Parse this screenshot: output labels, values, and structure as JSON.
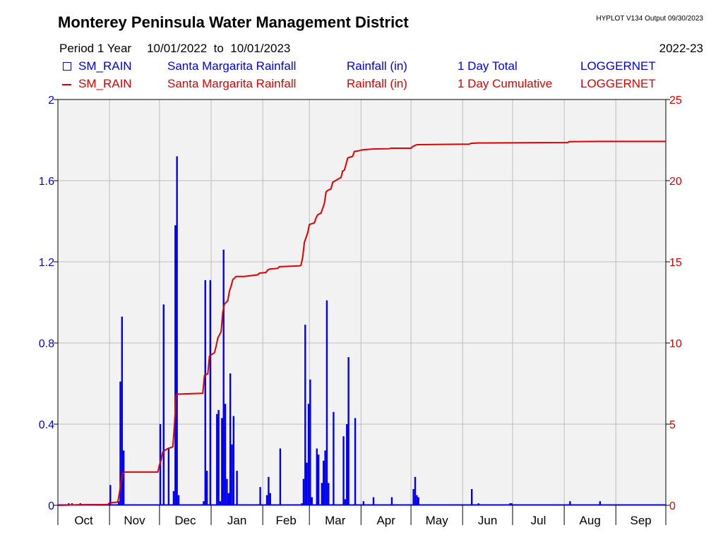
{
  "header": {
    "title": "Monterey Peninsula Water Management District",
    "version": "HYPLOT V134  Output 09/30/2023",
    "period_label": "Period 1 Year",
    "start_date": "10/01/2022",
    "to": "to",
    "end_date": "10/01/2023",
    "water_year": "2022-23"
  },
  "legend": [
    {
      "symbol": "box",
      "site": "SM_RAIN",
      "name": "Santa Margarita Rainfall",
      "variable": "Rainfall (in)",
      "stat": "1 Day Total",
      "source": "LOGGERNET",
      "color": "#0000ee"
    },
    {
      "symbol": "line",
      "site": "SM_RAIN",
      "name": "Santa Margarita Rainfall",
      "variable": "Rainfall (in)",
      "stat": "1 Day Cumulative",
      "source": "LOGGERNET",
      "color": "#e00000"
    }
  ],
  "chart_data": {
    "type": "bar",
    "colors": {
      "daily": "#0000ee",
      "cumulative": "#e00000",
      "grid": "#bdbdbd",
      "plot_bg": "#f2f2f2"
    },
    "grid": true,
    "y_left": {
      "range": [
        0,
        2
      ],
      "ticks": [
        0,
        0.4,
        0.8,
        1.2,
        1.6,
        2
      ],
      "tick_labels": [
        "0",
        "0.4",
        "0.8",
        "1.2",
        "1.6",
        "2"
      ]
    },
    "y_right": {
      "range": [
        0,
        25
      ],
      "ticks": [
        0,
        5,
        10,
        15,
        20,
        25
      ],
      "tick_labels": [
        "0",
        "5",
        "10",
        "15",
        "20",
        "25"
      ]
    },
    "x": {
      "range_days": [
        0,
        365
      ],
      "month_starts": [
        0,
        31,
        61,
        92,
        123,
        151,
        182,
        212,
        243,
        273,
        304,
        335,
        365
      ],
      "month_labels": [
        "Oct",
        "Nov",
        "Dec",
        "Jan",
        "Feb",
        "Mar",
        "Apr",
        "May",
        "Jun",
        "Jul",
        "Aug",
        "Sep"
      ]
    },
    "series": [
      {
        "name": "1 Day Total",
        "axis": "left",
        "points": [
          [
            6,
            0.01
          ],
          [
            8,
            0.01
          ],
          [
            13,
            0.01
          ],
          [
            31,
            0.1
          ],
          [
            36,
            0.02
          ],
          [
            37,
            0.61
          ],
          [
            38,
            0.93
          ],
          [
            39,
            0.27
          ],
          [
            61,
            0.4
          ],
          [
            63,
            0.99
          ],
          [
            66,
            0.28
          ],
          [
            69,
            0.07
          ],
          [
            70,
            1.38
          ],
          [
            71,
            1.72
          ],
          [
            72,
            0.05
          ],
          [
            87,
            0.02
          ],
          [
            88,
            1.11
          ],
          [
            89,
            0.17
          ],
          [
            91,
            1.11
          ],
          [
            95,
            0.45
          ],
          [
            96,
            0.47
          ],
          [
            97,
            0.02
          ],
          [
            98,
            0.43
          ],
          [
            99,
            1.26
          ],
          [
            100,
            0.5
          ],
          [
            101,
            0.13
          ],
          [
            102,
            0.06
          ],
          [
            103,
            0.65
          ],
          [
            104,
            0.3
          ],
          [
            105,
            0.44
          ],
          [
            107,
            0.17
          ],
          [
            121,
            0.09
          ],
          [
            125,
            0.05
          ],
          [
            126,
            0.14
          ],
          [
            127,
            0.06
          ],
          [
            133,
            0.28
          ],
          [
            146,
            0.01
          ],
          [
            147,
            0.13
          ],
          [
            148,
            0.89
          ],
          [
            149,
            0.21
          ],
          [
            150,
            0.5
          ],
          [
            151,
            0.62
          ],
          [
            152,
            0.04
          ],
          [
            155,
            0.28
          ],
          [
            156,
            0.25
          ],
          [
            158,
            0.11
          ],
          [
            159,
            0.22
          ],
          [
            160,
            0.27
          ],
          [
            161,
            1.01
          ],
          [
            162,
            0.11
          ],
          [
            165,
            0.46
          ],
          [
            171,
            0.34
          ],
          [
            172,
            0.03
          ],
          [
            173,
            0.4
          ],
          [
            174,
            0.73
          ],
          [
            178,
            0.43
          ],
          [
            183,
            0.02
          ],
          [
            189,
            0.04
          ],
          [
            200,
            0.04
          ],
          [
            213,
            0.08
          ],
          [
            214,
            0.14
          ],
          [
            215,
            0.05
          ],
          [
            216,
            0.04
          ],
          [
            248,
            0.08
          ],
          [
            252,
            0.01
          ],
          [
            271,
            0.01
          ],
          [
            272,
            0.01
          ],
          [
            307,
            0.02
          ],
          [
            325,
            0.02
          ]
        ]
      },
      {
        "name": "1 Day Cumulative",
        "axis": "right",
        "points": [
          [
            0,
            0
          ],
          [
            5,
            0.01
          ],
          [
            13,
            0.04
          ],
          [
            30,
            0.05
          ],
          [
            31,
            0.15
          ],
          [
            36,
            0.2
          ],
          [
            37,
            0.8
          ],
          [
            38,
            1.5
          ],
          [
            39,
            2.0
          ],
          [
            40,
            2.05
          ],
          [
            60,
            2.05
          ],
          [
            61,
            2.5
          ],
          [
            62,
            2.8
          ],
          [
            63,
            3.3
          ],
          [
            66,
            3.5
          ],
          [
            69,
            3.6
          ],
          [
            70,
            5.0
          ],
          [
            71,
            6.8
          ],
          [
            72,
            6.85
          ],
          [
            87,
            6.9
          ],
          [
            88,
            8.0
          ],
          [
            90,
            8.1
          ],
          [
            91,
            9.2
          ],
          [
            94,
            9.4
          ],
          [
            95,
            9.8
          ],
          [
            96,
            10.3
          ],
          [
            98,
            10.7
          ],
          [
            99,
            11.9
          ],
          [
            100,
            12.4
          ],
          [
            102,
            12.6
          ],
          [
            103,
            13.2
          ],
          [
            104,
            13.5
          ],
          [
            105,
            13.9
          ],
          [
            107,
            14.1
          ],
          [
            112,
            14.1
          ],
          [
            120,
            14.2
          ],
          [
            121,
            14.3
          ],
          [
            125,
            14.35
          ],
          [
            126,
            14.5
          ],
          [
            127,
            14.55
          ],
          [
            132,
            14.6
          ],
          [
            133,
            14.7
          ],
          [
            145,
            14.75
          ],
          [
            146,
            14.8
          ],
          [
            147,
            15.3
          ],
          [
            148,
            16.2
          ],
          [
            150,
            16.8
          ],
          [
            151,
            17.3
          ],
          [
            154,
            17.4
          ],
          [
            155,
            17.7
          ],
          [
            156,
            17.9
          ],
          [
            158,
            18.0
          ],
          [
            159,
            18.3
          ],
          [
            160,
            18.6
          ],
          [
            161,
            19.3
          ],
          [
            162,
            19.4
          ],
          [
            164,
            19.5
          ],
          [
            165,
            19.9
          ],
          [
            170,
            20.2
          ],
          [
            171,
            20.6
          ],
          [
            172,
            20.65
          ],
          [
            173,
            21.0
          ],
          [
            174,
            21.4
          ],
          [
            177,
            21.5
          ],
          [
            178,
            21.8
          ],
          [
            181,
            21.85
          ],
          [
            183,
            21.9
          ],
          [
            189,
            21.95
          ],
          [
            199,
            21.97
          ],
          [
            200,
            22.0
          ],
          [
            212,
            22.0
          ],
          [
            213,
            22.1
          ],
          [
            214,
            22.15
          ],
          [
            215,
            22.2
          ],
          [
            216,
            22.22
          ],
          [
            247,
            22.25
          ],
          [
            248,
            22.3
          ],
          [
            252,
            22.32
          ],
          [
            271,
            22.33
          ],
          [
            306,
            22.35
          ],
          [
            307,
            22.4
          ],
          [
            325,
            22.42
          ],
          [
            365,
            22.42
          ]
        ]
      }
    ]
  }
}
